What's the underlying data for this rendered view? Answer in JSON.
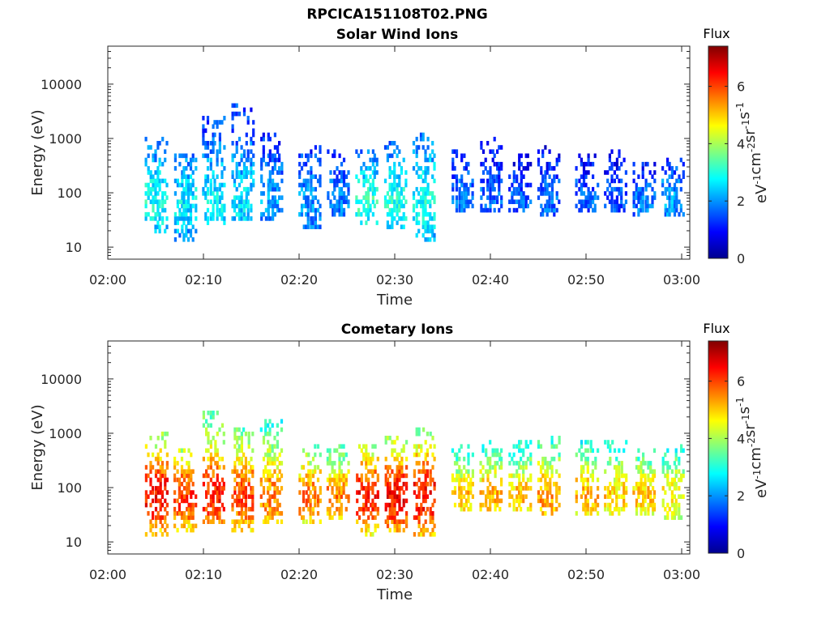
{
  "figure": {
    "title": "RPCICA151108T02.PNG"
  },
  "chart_data": [
    {
      "type": "heatmap",
      "title": "Solar Wind Ions",
      "xlabel": "Time",
      "ylabel": "Energy (eV)",
      "x_ticks": [
        "02:00",
        "02:10",
        "02:20",
        "02:30",
        "02:40",
        "02:50",
        "03:00"
      ],
      "xlim": [
        "02:00",
        "03:00"
      ],
      "y_ticks": [
        "10",
        "100",
        "1000",
        "10000"
      ],
      "ylim": [
        6,
        50000
      ],
      "y_scale": "log",
      "colorbar": {
        "title": "Flux",
        "label": "eV-1cm-2sr-1s-1",
        "ticks": [
          "0",
          "2",
          "4",
          "6"
        ],
        "range": [
          0,
          7.4
        ],
        "colormap": "jet"
      },
      "bursts": [
        {
          "t": "02:05",
          "flux_mean": 2.6,
          "e_min": 18,
          "e_max": 1000
        },
        {
          "t": "02:08",
          "flux_mean": 2.4,
          "e_min": 12,
          "e_max": 500
        },
        {
          "t": "02:11",
          "flux_mean": 2.4,
          "e_min": 25,
          "e_max": 2400
        },
        {
          "t": "02:14",
          "flux_mean": 2.3,
          "e_min": 30,
          "e_max": 4500
        },
        {
          "t": "02:17",
          "flux_mean": 1.9,
          "e_min": 30,
          "e_max": 1400
        },
        {
          "t": "02:21",
          "flux_mean": 1.8,
          "e_min": 20,
          "e_max": 800
        },
        {
          "t": "02:24",
          "flux_mean": 1.7,
          "e_min": 35,
          "e_max": 600
        },
        {
          "t": "02:27",
          "flux_mean": 2.8,
          "e_min": 25,
          "e_max": 600
        },
        {
          "t": "02:30",
          "flux_mean": 2.7,
          "e_min": 20,
          "e_max": 900
        },
        {
          "t": "02:33",
          "flux_mean": 2.6,
          "e_min": 12,
          "e_max": 1300
        },
        {
          "t": "02:37",
          "flux_mean": 1.7,
          "e_min": 45,
          "e_max": 600
        },
        {
          "t": "02:40",
          "flux_mean": 1.5,
          "e_min": 45,
          "e_max": 1100
        },
        {
          "t": "02:43",
          "flux_mean": 1.4,
          "e_min": 45,
          "e_max": 500
        },
        {
          "t": "02:46",
          "flux_mean": 1.5,
          "e_min": 40,
          "e_max": 800
        },
        {
          "t": "02:50",
          "flux_mean": 1.5,
          "e_min": 45,
          "e_max": 500
        },
        {
          "t": "02:53",
          "flux_mean": 1.4,
          "e_min": 45,
          "e_max": 600
        },
        {
          "t": "02:56",
          "flux_mean": 1.6,
          "e_min": 40,
          "e_max": 400
        },
        {
          "t": "02:59",
          "flux_mean": 1.9,
          "e_min": 40,
          "e_max": 500
        }
      ]
    },
    {
      "type": "heatmap",
      "title": "Cometary Ions",
      "xlabel": "Time",
      "ylabel": "Energy (eV)",
      "x_ticks": [
        "02:00",
        "02:10",
        "02:20",
        "02:30",
        "02:40",
        "02:50",
        "03:00"
      ],
      "xlim": [
        "02:00",
        "03:00"
      ],
      "y_ticks": [
        "10",
        "100",
        "1000",
        "10000"
      ],
      "ylim": [
        6,
        50000
      ],
      "y_scale": "log",
      "colorbar": {
        "title": "Flux",
        "label": "eV-1cm-2sr-1s-1",
        "ticks": [
          "0",
          "2",
          "4",
          "6"
        ],
        "range": [
          0,
          7.4
        ],
        "colormap": "jet"
      },
      "bursts": [
        {
          "t": "02:05",
          "flux_mean": 5.8,
          "e_min": 12,
          "e_max": 1000
        },
        {
          "t": "02:08",
          "flux_mean": 5.6,
          "e_min": 15,
          "e_max": 550
        },
        {
          "t": "02:11",
          "flux_mean": 5.7,
          "e_min": 20,
          "e_max": 2400
        },
        {
          "t": "02:14",
          "flux_mean": 5.4,
          "e_min": 15,
          "e_max": 1300
        },
        {
          "t": "02:17",
          "flux_mean": 5.0,
          "e_min": 20,
          "e_max": 1700
        },
        {
          "t": "02:21",
          "flux_mean": 5.1,
          "e_min": 20,
          "e_max": 600
        },
        {
          "t": "02:24",
          "flux_mean": 5.0,
          "e_min": 25,
          "e_max": 600
        },
        {
          "t": "02:27",
          "flux_mean": 5.7,
          "e_min": 12,
          "e_max": 600
        },
        {
          "t": "02:30",
          "flux_mean": 5.9,
          "e_min": 15,
          "e_max": 900
        },
        {
          "t": "02:33",
          "flux_mean": 5.8,
          "e_min": 12,
          "e_max": 1200
        },
        {
          "t": "02:37",
          "flux_mean": 4.6,
          "e_min": 40,
          "e_max": 600
        },
        {
          "t": "02:40",
          "flux_mean": 4.7,
          "e_min": 35,
          "e_max": 700
        },
        {
          "t": "02:43",
          "flux_mean": 4.6,
          "e_min": 35,
          "e_max": 800
        },
        {
          "t": "02:46",
          "flux_mean": 4.9,
          "e_min": 30,
          "e_max": 850
        },
        {
          "t": "02:50",
          "flux_mean": 4.7,
          "e_min": 30,
          "e_max": 800
        },
        {
          "t": "02:53",
          "flux_mean": 4.5,
          "e_min": 30,
          "e_max": 700
        },
        {
          "t": "02:56",
          "flux_mean": 4.6,
          "e_min": 30,
          "e_max": 500
        },
        {
          "t": "02:59",
          "flux_mean": 4.3,
          "e_min": 25,
          "e_max": 600
        }
      ]
    }
  ]
}
